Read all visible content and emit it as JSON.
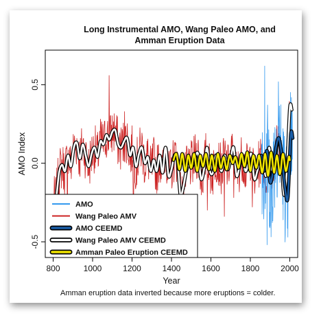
{
  "chart_data": {
    "type": "line",
    "title_line1": "Long Instrumental AMO, Wang Paleo AMO, and",
    "title_line2": "Amman Eruption Data",
    "xlabel": "Year",
    "ylabel": "AMO Index",
    "xlim": [
      760,
      2040
    ],
    "ylim": [
      -0.6,
      0.72
    ],
    "xticks": [
      800,
      1000,
      1200,
      1400,
      1600,
      1800,
      2000
    ],
    "yticks": [
      -0.5,
      0.0,
      0.5
    ],
    "ytick_labels": [
      "-0.5",
      "0.0",
      "0.5"
    ],
    "footnote": "Amman eruption data inverted because more eruptions = colder.",
    "legend": {
      "placement": "bottom-left",
      "entries": [
        {
          "label": "AMO",
          "color": "#3399ee",
          "style": "thin"
        },
        {
          "label": "Wang Paleo AMV",
          "color": "#cc2222",
          "style": "thin"
        },
        {
          "label": "AMO CEEMD",
          "color": "#1a5ea8",
          "style": "thick-outlined"
        },
        {
          "label": "Wang Paleo AMV CEEMD",
          "color": "#ffffff",
          "style": "thick-outlined"
        },
        {
          "label": "Amman Paleo Eruption CEEMD",
          "color": "#f2e600",
          "style": "thick-outlined"
        }
      ]
    },
    "series": [
      {
        "name": "Wang Paleo AMV CEEMD",
        "color": "#ffffff",
        "x": [
          800,
          815,
          830,
          845,
          860,
          875,
          890,
          905,
          920,
          935,
          950,
          965,
          980,
          995,
          1010,
          1025,
          1040,
          1055,
          1070,
          1085,
          1100,
          1115,
          1130,
          1145,
          1160,
          1175,
          1190,
          1205,
          1220,
          1235,
          1250,
          1265,
          1280,
          1295,
          1310,
          1325,
          1340,
          1355,
          1370,
          1385,
          1400,
          1415,
          1430,
          1445,
          1460,
          1475,
          1490,
          1505,
          1520,
          1535,
          1550,
          1565,
          1580,
          1595,
          1610,
          1625,
          1640,
          1655,
          1670,
          1685,
          1700,
          1715,
          1730,
          1745,
          1760,
          1775,
          1790,
          1805,
          1820,
          1835,
          1850,
          1865,
          1880,
          1895,
          1910,
          1925,
          1940,
          1955,
          1970,
          1985,
          2000,
          2010
        ],
        "values": [
          -0.25,
          -0.22,
          -0.06,
          -0.01,
          -0.05,
          0.05,
          -0.02,
          0.1,
          0.13,
          0.03,
          0.12,
          0.05,
          -0.02,
          0.06,
          0.1,
          0.04,
          0.14,
          0.12,
          0.18,
          0.15,
          0.2,
          0.21,
          0.12,
          0.1,
          0.14,
          0.16,
          0.05,
          0.1,
          -0.02,
          0.06,
          0.1,
          0.0,
          0.04,
          -0.05,
          0.02,
          -0.05,
          0.05,
          -0.06,
          0.1,
          -0.08,
          -0.04,
          0.05,
          0.02,
          -0.2,
          -0.15,
          -0.05,
          0.0,
          -0.02,
          0.04,
          0.06,
          -0.1,
          -0.04,
          0.1,
          -0.05,
          -0.06,
          0.05,
          0.0,
          -0.05,
          0.05,
          -0.04,
          0.03,
          0.1,
          -0.08,
          -0.02,
          0.05,
          -0.05,
          0.0,
          0.06,
          -0.1,
          -0.05,
          0.02,
          0.0,
          -0.08,
          0.1,
          -0.05,
          0.03,
          0.15,
          0.08,
          -0.2,
          -0.05,
          0.35,
          0.34
        ]
      },
      {
        "name": "Amman Paleo Eruption CEEMD",
        "color": "#f2e600",
        "x": [
          1410,
          1425,
          1440,
          1455,
          1470,
          1485,
          1500,
          1515,
          1530,
          1545,
          1560,
          1575,
          1590,
          1605,
          1620,
          1635,
          1650,
          1665,
          1680,
          1695,
          1710,
          1725,
          1740,
          1755,
          1770,
          1785,
          1800,
          1815,
          1830,
          1845,
          1860,
          1875,
          1890,
          1905,
          1920,
          1935,
          1950,
          1965,
          1980,
          1995,
          2000
        ],
        "values": [
          0.02,
          0.06,
          -0.04,
          0.06,
          -0.05,
          0.05,
          -0.03,
          0.06,
          -0.05,
          0.05,
          -0.02,
          0.06,
          -0.04,
          0.05,
          -0.05,
          0.06,
          -0.03,
          0.04,
          -0.04,
          0.05,
          0.0,
          0.04,
          -0.03,
          0.06,
          -0.02,
          0.07,
          -0.05,
          0.05,
          -0.03,
          0.05,
          -0.06,
          0.06,
          -0.08,
          0.07,
          -0.06,
          0.05,
          -0.07,
          0.06,
          -0.05,
          0.04,
          0.02
        ]
      },
      {
        "name": "AMO CEEMD",
        "color": "#1a5ea8",
        "x": [
          1856,
          1870,
          1885,
          1900,
          1915,
          1930,
          1945,
          1960,
          1975,
          1990,
          2005,
          2015
        ],
        "values": [
          0.05,
          -0.05,
          0.08,
          -0.12,
          -0.05,
          0.1,
          0.16,
          0.04,
          -0.15,
          -0.22,
          0.18,
          0.16
        ]
      }
    ],
    "raw_series": [
      {
        "name": "Wang Paleo AMV",
        "color": "#cc2222",
        "x_start": 800,
        "x_end": 2000,
        "amplitude": 0.16,
        "spikes": [
          {
            "x": 1084,
            "y": 0.56
          },
          {
            "x": 1162,
            "y": 0.33
          },
          {
            "x": 872,
            "y": -0.43
          },
          {
            "x": 1207,
            "y": -0.25
          },
          {
            "x": 1456,
            "y": -0.3
          },
          {
            "x": 1582,
            "y": -0.3
          },
          {
            "x": 1668,
            "y": -0.34
          },
          {
            "x": 1716,
            "y": -0.22
          },
          {
            "x": 1810,
            "y": -0.28
          },
          {
            "x": 810,
            "y": -0.42
          }
        ]
      },
      {
        "name": "AMO",
        "color": "#3399ee",
        "x_start": 1856,
        "x_end": 2014,
        "amplitude": 0.35,
        "spikes": [
          {
            "x": 1873,
            "y": 0.62
          },
          {
            "x": 1885,
            "y": -0.52
          },
          {
            "x": 1942,
            "y": 0.52
          },
          {
            "x": 1905,
            "y": -0.47
          },
          {
            "x": 2008,
            "y": 0.42
          }
        ]
      }
    ]
  }
}
